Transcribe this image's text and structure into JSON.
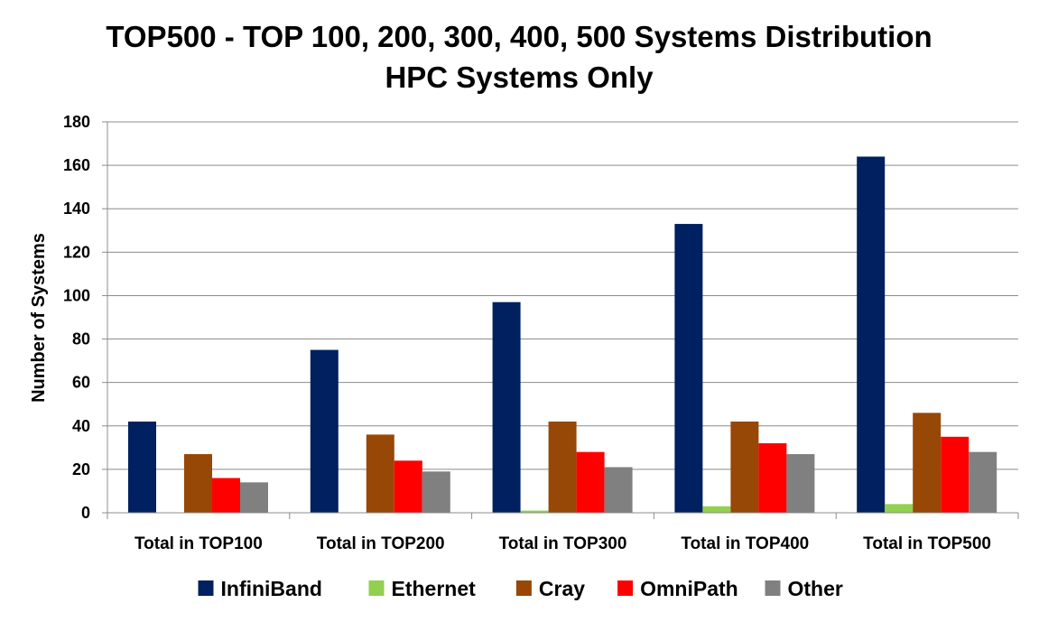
{
  "chart_data": {
    "type": "bar",
    "title": "TOP500 - TOP 100, 200, 300, 400, 500 Systems Distribution",
    "subtitle": "HPC Systems Only",
    "xlabel": "",
    "ylabel": "Number of Systems",
    "ylim": [
      0,
      180
    ],
    "yticks": [
      0,
      20,
      40,
      60,
      80,
      100,
      120,
      140,
      160,
      180
    ],
    "categories": [
      "Total in TOP100",
      "Total in TOP200",
      "Total in TOP300",
      "Total in TOP400",
      "Total in TOP500"
    ],
    "series": [
      {
        "name": "InfiniBand",
        "color": "#002060",
        "values": [
          42,
          75,
          97,
          133,
          164
        ]
      },
      {
        "name": "Ethernet",
        "color": "#92D050",
        "values": [
          0,
          0,
          1,
          3,
          4
        ]
      },
      {
        "name": "Cray",
        "color": "#974706",
        "values": [
          27,
          36,
          42,
          42,
          46
        ]
      },
      {
        "name": "OmniPath",
        "color": "#FF0000",
        "values": [
          16,
          24,
          28,
          32,
          35
        ]
      },
      {
        "name": "Other",
        "color": "#808080",
        "values": [
          14,
          19,
          21,
          27,
          28
        ]
      }
    ],
    "grid": true,
    "legend_position": "bottom"
  }
}
